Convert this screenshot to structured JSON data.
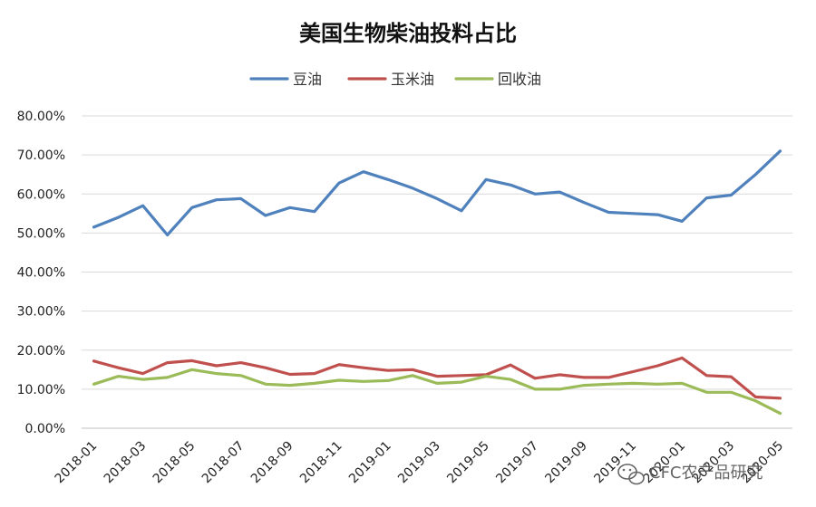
{
  "chart_data": {
    "type": "line",
    "title": "美国生物柴油投料占比",
    "xlabel": "",
    "ylabel": "",
    "ylim": [
      0,
      0.8
    ],
    "y_ticks": [
      "80.00%",
      "70.00%",
      "60.00%",
      "50.00%",
      "40.00%",
      "30.00%",
      "20.00%",
      "10.00%",
      "0.00%"
    ],
    "grid": true,
    "legend_position": "top",
    "categories": [
      "2018-01",
      "2018-02",
      "2018-03",
      "2018-04",
      "2018-05",
      "2018-06",
      "2018-07",
      "2018-08",
      "2018-09",
      "2018-10",
      "2018-11",
      "2018-12",
      "2019-01",
      "2019-02",
      "2019-03",
      "2019-04",
      "2019-05",
      "2019-06",
      "2019-07",
      "2019-08",
      "2019-09",
      "2019-10",
      "2019-11",
      "2019-12",
      "2020-01",
      "2020-02",
      "2020-03",
      "2020-04",
      "2020-05"
    ],
    "x_tick_labels": [
      "2018-01",
      "2018-03",
      "2018-05",
      "2018-07",
      "2018-09",
      "2018-11",
      "2019-01",
      "2019-03",
      "2019-05",
      "2019-07",
      "2019-09",
      "2019-11",
      "2020-01",
      "2020-03",
      "2020-05"
    ],
    "series": [
      {
        "name": "豆油",
        "color": "#4F81BD",
        "values": [
          0.515,
          0.54,
          0.57,
          0.495,
          0.565,
          0.585,
          0.588,
          0.545,
          0.565,
          0.555,
          0.628,
          0.657,
          0.637,
          0.615,
          0.588,
          0.557,
          0.637,
          0.623,
          0.6,
          0.605,
          0.578,
          0.553,
          0.55,
          0.547,
          0.53,
          0.59,
          0.597,
          0.65,
          0.71
        ]
      },
      {
        "name": "玉米油",
        "color": "#C0504D",
        "values": [
          0.172,
          0.155,
          0.14,
          0.168,
          0.173,
          0.16,
          0.168,
          0.155,
          0.138,
          0.14,
          0.163,
          0.155,
          0.148,
          0.15,
          0.133,
          0.135,
          0.137,
          0.162,
          0.128,
          0.137,
          0.13,
          0.13,
          0.145,
          0.16,
          0.18,
          0.135,
          0.132,
          0.08,
          0.077
        ]
      },
      {
        "name": "回收油",
        "color": "#9BBB59",
        "values": [
          0.113,
          0.133,
          0.125,
          0.13,
          0.15,
          0.14,
          0.135,
          0.113,
          0.11,
          0.115,
          0.123,
          0.12,
          0.122,
          0.135,
          0.115,
          0.118,
          0.133,
          0.125,
          0.1,
          0.1,
          0.11,
          0.113,
          0.115,
          0.113,
          0.115,
          0.092,
          0.092,
          0.07,
          0.038
        ]
      }
    ]
  },
  "watermark": {
    "text": "CFC农产品研究",
    "icon": "wechat-icon"
  }
}
